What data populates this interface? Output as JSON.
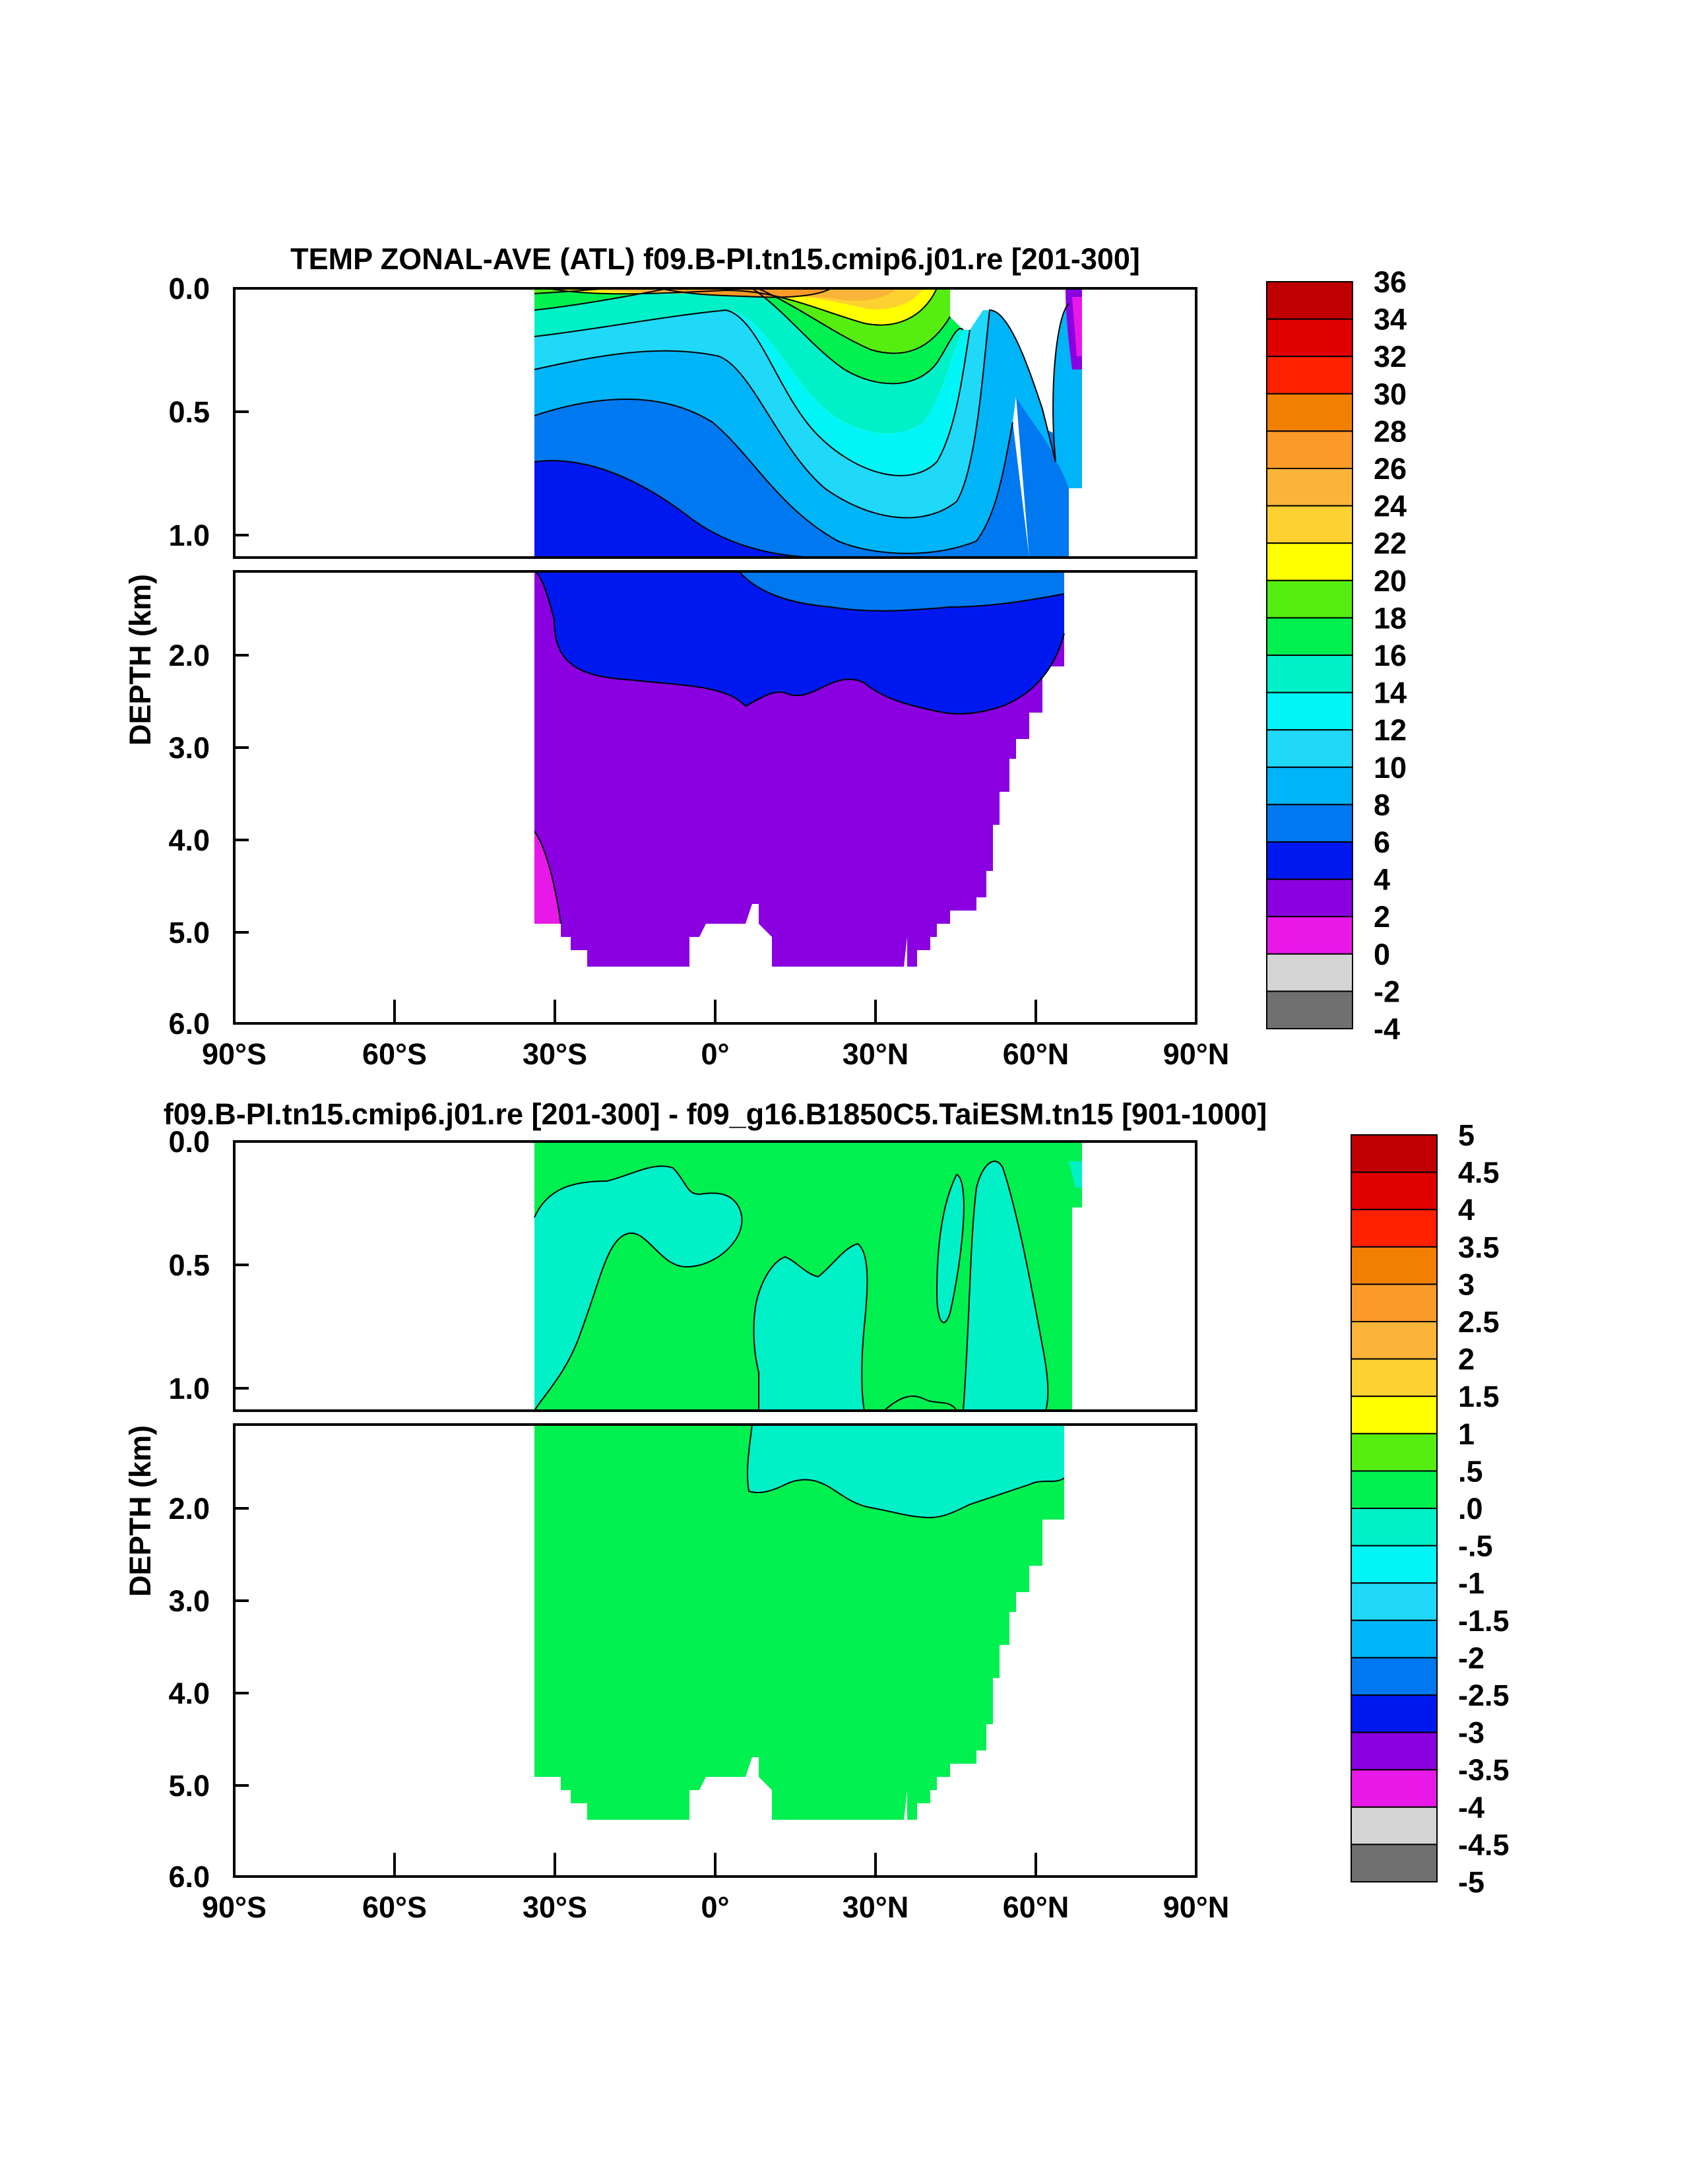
{
  "chart_data": [
    {
      "type": "heatmap",
      "title": "TEMP ZONAL-AVE (ATL) f09.B-PI.tn15.cmip6.j01.re [201-300]",
      "ylabel": "DEPTH (km)",
      "xlabel": "",
      "xlim": [
        -90,
        90
      ],
      "x_ticks": [
        "90°S",
        "60°S",
        "30°S",
        "0°",
        "30°N",
        "60°N",
        "90°N"
      ],
      "y_ticks_upper": [
        "0.0",
        "0.5",
        "1.0"
      ],
      "y_ticks_lower": [
        "2.0",
        "3.0",
        "4.0",
        "5.0",
        "6.0"
      ],
      "ylim_upper_km": [
        0,
        1.1
      ],
      "ylim_lower_km": [
        1.15,
        6.0
      ],
      "colorbar": {
        "levels": [
          "36",
          "34",
          "32",
          "30",
          "28",
          "26",
          "24",
          "22",
          "20",
          "18",
          "16",
          "14",
          "12",
          "10",
          "8",
          "6",
          "4",
          "2",
          "0",
          "-2",
          "-4"
        ],
        "colors": [
          "#c00000",
          "#e00000",
          "#ff2000",
          "#f28000",
          "#fa9a28",
          "#fbb43a",
          "#fdd230",
          "#ffff00",
          "#55ee10",
          "#00f050",
          "#00f0c8",
          "#00f6f6",
          "#20d8f8",
          "#00b4f8",
          "#0078f0",
          "#0018f0",
          "#8a00e0",
          "#e818e8",
          "#d4d4d4",
          "#707070"
        ]
      },
      "region": {
        "lat_range": [
          -34,
          70
        ],
        "surface_max_temp_approx": 28,
        "deep_water_temp_range": [
          2,
          4
        ],
        "bottom_water_temp_range": [
          0,
          2
        ]
      }
    },
    {
      "type": "heatmap",
      "title": "f09.B-PI.tn15.cmip6.j01.re [201-300] - f09_g16.B1850C5.TaiESM.tn15 [901-1000]",
      "ylabel": "DEPTH (km)",
      "xlabel": "",
      "xlim": [
        -90,
        90
      ],
      "x_ticks": [
        "90°S",
        "60°S",
        "30°S",
        "0°",
        "30°N",
        "60°N",
        "90°N"
      ],
      "y_ticks_upper": [
        "0.0",
        "0.5",
        "1.0"
      ],
      "y_ticks_lower": [
        "2.0",
        "3.0",
        "4.0",
        "5.0",
        "6.0"
      ],
      "ylim_upper_km": [
        0,
        1.1
      ],
      "ylim_lower_km": [
        1.15,
        6.0
      ],
      "colorbar": {
        "levels": [
          "5",
          "4.5",
          "4",
          "3.5",
          "3",
          "2.5",
          "2",
          "1.5",
          "1",
          ".5",
          ".0",
          "-.5",
          "-1",
          "-1.5",
          "-2",
          "-2.5",
          "-3",
          "-3.5",
          "-4",
          "-4.5",
          "-5"
        ],
        "colors": [
          "#c00000",
          "#e00000",
          "#ff2000",
          "#f28000",
          "#fa9a28",
          "#fbb43a",
          "#fdd230",
          "#ffff00",
          "#55ee10",
          "#00f050",
          "#00f0c8",
          "#00f6f6",
          "#20d8f8",
          "#00b4f8",
          "#0078f0",
          "#0018f0",
          "#8a00e0",
          "#e818e8",
          "#d4d4d4",
          "#707070"
        ]
      },
      "region": {
        "lat_range": [
          -34,
          70
        ],
        "difference_range": [
          -0.5,
          0.5
        ]
      }
    }
  ]
}
